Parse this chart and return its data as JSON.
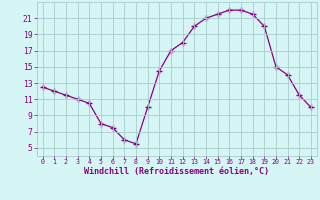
{
  "x": [
    0,
    1,
    2,
    3,
    4,
    5,
    6,
    7,
    8,
    9,
    10,
    11,
    12,
    13,
    14,
    15,
    16,
    17,
    18,
    19,
    20,
    21,
    22,
    23
  ],
  "y": [
    12.5,
    12.0,
    11.5,
    11.0,
    10.5,
    8.0,
    7.5,
    6.0,
    5.5,
    10.0,
    14.5,
    17.0,
    18.0,
    20.0,
    21.0,
    21.5,
    22.0,
    22.0,
    21.5,
    20.0,
    15.0,
    14.0,
    11.5,
    10.0
  ],
  "line_color": "#880088",
  "marker": "+",
  "marker_size": 4,
  "marker_lw": 1.0,
  "background_color": "#d6f5f5",
  "grid_color": "#aacccc",
  "xlabel": "Windchill (Refroidissement éolien,°C)",
  "xlabel_color": "#880088",
  "tick_color": "#880088",
  "yticks": [
    5,
    7,
    9,
    11,
    13,
    15,
    17,
    19,
    21
  ],
  "xtick_labels": [
    "0",
    "1",
    "2",
    "3",
    "4",
    "5",
    "6",
    "7",
    "8",
    "9",
    "10",
    "11",
    "12",
    "13",
    "14",
    "15",
    "16",
    "17",
    "18",
    "19",
    "20",
    "21",
    "22",
    "23"
  ],
  "ylim": [
    4.0,
    23.0
  ],
  "xlim": [
    -0.5,
    23.5
  ],
  "line_width": 0.9,
  "xlabel_fontsize": 6.0,
  "tick_fontsize_x": 4.8,
  "tick_fontsize_y": 5.8
}
